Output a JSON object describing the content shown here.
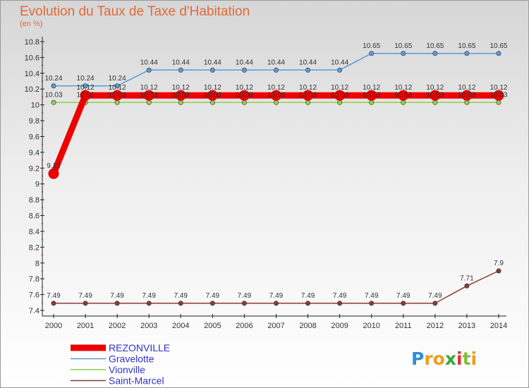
{
  "title": "Evolution du Taux de Taxe d'Habitation",
  "unit": "(en %)",
  "logo": {
    "text": "Proxiti",
    "letters": [
      "P",
      "r",
      "o",
      "x",
      "i",
      "t",
      "i"
    ],
    "colors": [
      "#2b8fd6",
      "#f29b1c",
      "#f29b1c",
      "#3aa635",
      "#e0342c",
      "#7fbf3c",
      "#f29b1c"
    ]
  },
  "chart_data": {
    "type": "line",
    "x": [
      "2000",
      "2001",
      "2002",
      "2003",
      "2004",
      "2005",
      "2006",
      "2007",
      "2008",
      "2009",
      "2010",
      "2011",
      "2012",
      "2013",
      "2014"
    ],
    "ylim": [
      7.4,
      10.8
    ],
    "yticks": [
      "7.4",
      "7.6",
      "7.8",
      "8",
      "8.2",
      "8.4",
      "8.6",
      "8.8",
      "9",
      "9.2",
      "9.4",
      "9.6",
      "9.8",
      "10",
      "10.2",
      "10.4",
      "10.6",
      "10.8"
    ],
    "grid": false,
    "legend_position": "bottom-left",
    "series": [
      {
        "name": "REZONVILLE",
        "color": "#ee0000",
        "line_width": 9,
        "marker": 7,
        "values": [
          9.13,
          10.12,
          10.12,
          10.12,
          10.12,
          10.12,
          10.12,
          10.12,
          10.12,
          10.12,
          10.12,
          10.12,
          10.12,
          10.12,
          10.12
        ],
        "labels": [
          "9.13",
          "10.12",
          "10.12",
          "10.12",
          "10.12",
          "10.12",
          "10.12",
          "10.12",
          "10.12",
          "10.12",
          "10.12",
          "10.12",
          "10.12",
          "10.12",
          "10.12"
        ]
      },
      {
        "name": "Gravelotte",
        "color": "#5b9bd5",
        "line_width": 1.5,
        "marker": 3.2,
        "values": [
          10.24,
          10.24,
          10.24,
          10.44,
          10.44,
          10.44,
          10.44,
          10.44,
          10.44,
          10.44,
          10.65,
          10.65,
          10.65,
          10.65,
          10.65
        ],
        "labels": [
          "10.24",
          "10.24",
          "10.24",
          "10.44",
          "10.44",
          "10.44",
          "10.44",
          "10.44",
          "10.44",
          "10.44",
          "10.65",
          "10.65",
          "10.65",
          "10.65",
          "10.65"
        ]
      },
      {
        "name": "Vionville",
        "color": "#8cd14e",
        "line_width": 1.5,
        "marker": 3.2,
        "values": [
          10.03,
          10.03,
          10.03,
          10.03,
          10.03,
          10.03,
          10.03,
          10.03,
          10.03,
          10.03,
          10.03,
          10.03,
          10.03,
          10.03,
          10.03
        ],
        "labels": [
          "10.03",
          "10.03",
          "10.03",
          "10.03",
          "10.03",
          "10.03",
          "10.03",
          "10.03",
          "10.03",
          "10.03",
          "10.03",
          "10.03",
          "10.03",
          "10.03",
          "10.03"
        ]
      },
      {
        "name": "Saint-Marcel",
        "color": "#8b3a3a",
        "line_width": 1.5,
        "marker": 3.2,
        "values": [
          7.49,
          7.49,
          7.49,
          7.49,
          7.49,
          7.49,
          7.49,
          7.49,
          7.49,
          7.49,
          7.49,
          7.49,
          7.49,
          7.71,
          7.9
        ],
        "labels": [
          "7.49",
          "7.49",
          "7.49",
          "7.49",
          "7.49",
          "7.49",
          "7.49",
          "7.49",
          "7.49",
          "7.49",
          "7.49",
          "7.49",
          "7.49",
          "7.71",
          "7.9"
        ]
      }
    ]
  }
}
